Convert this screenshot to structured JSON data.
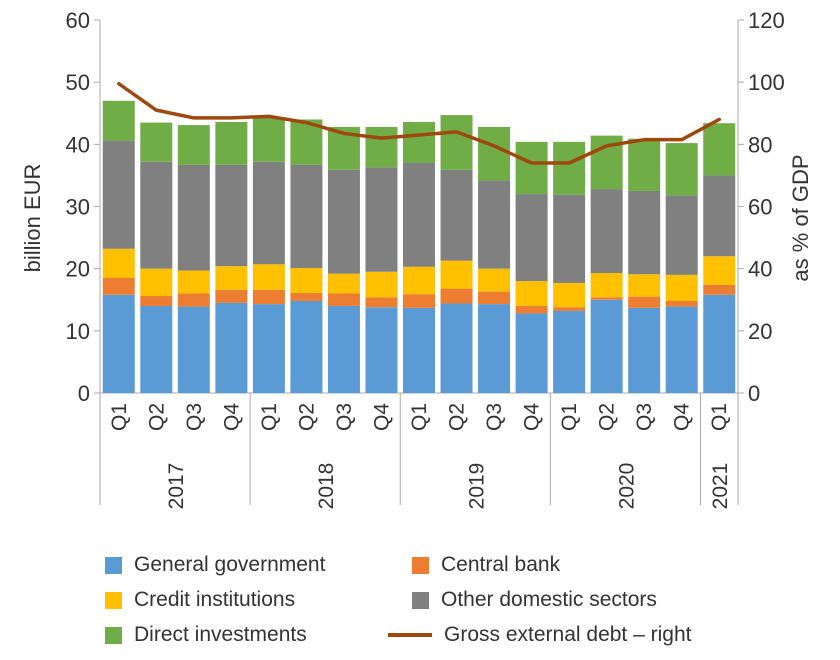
{
  "chart_data": {
    "type": "bar",
    "stacked": true,
    "years": [
      "2017",
      "2018",
      "2019",
      "2020",
      "2021"
    ],
    "categories": [
      "Q1",
      "Q2",
      "Q3",
      "Q4",
      "Q1",
      "Q2",
      "Q3",
      "Q4",
      "Q1",
      "Q2",
      "Q3",
      "Q4",
      "Q1",
      "Q2",
      "Q3",
      "Q4",
      "Q1"
    ],
    "category_years": [
      "2017",
      "2017",
      "2017",
      "2017",
      "2018",
      "2018",
      "2018",
      "2018",
      "2019",
      "2019",
      "2019",
      "2019",
      "2020",
      "2020",
      "2020",
      "2020",
      "2021"
    ],
    "ylabel": "billion EUR",
    "y2label": "as % of GDP",
    "ylim": [
      0,
      60
    ],
    "y2lim": [
      0,
      120
    ],
    "yticks": [
      "0",
      "10",
      "20",
      "30",
      "40",
      "50",
      "60"
    ],
    "y2ticks": [
      "0",
      "20",
      "40",
      "60",
      "80",
      "100",
      "120"
    ],
    "grid": false,
    "legend_position": "bottom",
    "series": [
      {
        "name": "General government",
        "color": "#5B9BD5",
        "values": [
          15.8,
          14.0,
          13.9,
          14.5,
          14.3,
          14.8,
          14.0,
          13.8,
          13.7,
          14.4,
          14.3,
          12.8,
          13.2,
          15.0,
          13.7,
          13.9,
          15.8
        ]
      },
      {
        "name": "Central bank",
        "color": "#ED7D31",
        "values": [
          2.7,
          1.6,
          2.1,
          2.1,
          2.3,
          1.3,
          2.0,
          1.6,
          2.2,
          2.4,
          2.0,
          1.2,
          0.6,
          0.4,
          1.8,
          0.9,
          1.6
        ]
      },
      {
        "name": "Credit institutions",
        "color": "#FFC000",
        "values": [
          4.7,
          4.4,
          3.7,
          3.8,
          4.1,
          4.0,
          3.2,
          4.1,
          4.4,
          4.5,
          3.7,
          4.0,
          3.9,
          3.9,
          3.6,
          4.2,
          4.6
        ]
      },
      {
        "name": "Other domestic sectors",
        "color": "#808080",
        "values": [
          17.4,
          17.2,
          17.0,
          16.3,
          16.5,
          16.6,
          16.7,
          16.8,
          16.7,
          14.6,
          14.2,
          14.0,
          14.2,
          13.5,
          13.4,
          12.8,
          13.0
        ]
      },
      {
        "name": "Direct investments",
        "color": "#70AD47",
        "values": [
          6.4,
          6.3,
          6.4,
          6.9,
          7.2,
          7.3,
          6.9,
          6.5,
          6.6,
          8.8,
          8.6,
          8.4,
          8.5,
          8.6,
          8.4,
          8.4,
          8.4
        ]
      }
    ],
    "line_series": {
      "name": "Gross external debt – right",
      "color": "#9E480E",
      "axis": "right",
      "values": [
        99.5,
        91.0,
        88.5,
        88.5,
        89.0,
        87.0,
        83.5,
        82.0,
        83.0,
        84.0,
        79.5,
        74.0,
        74.0,
        79.5,
        81.5,
        81.5,
        88.0
      ]
    }
  },
  "legend": {
    "items": [
      {
        "label": "General government",
        "color": "#5B9BD5",
        "kind": "box"
      },
      {
        "label": "Central bank",
        "color": "#ED7D31",
        "kind": "box"
      },
      {
        "label": "Credit institutions",
        "color": "#FFC000",
        "kind": "box"
      },
      {
        "label": "Other domestic sectors",
        "color": "#808080",
        "kind": "box"
      },
      {
        "label": "Direct investments",
        "color": "#70AD47",
        "kind": "box"
      },
      {
        "label": "Gross external debt – right",
        "color": "#9E480E",
        "kind": "line"
      }
    ]
  }
}
